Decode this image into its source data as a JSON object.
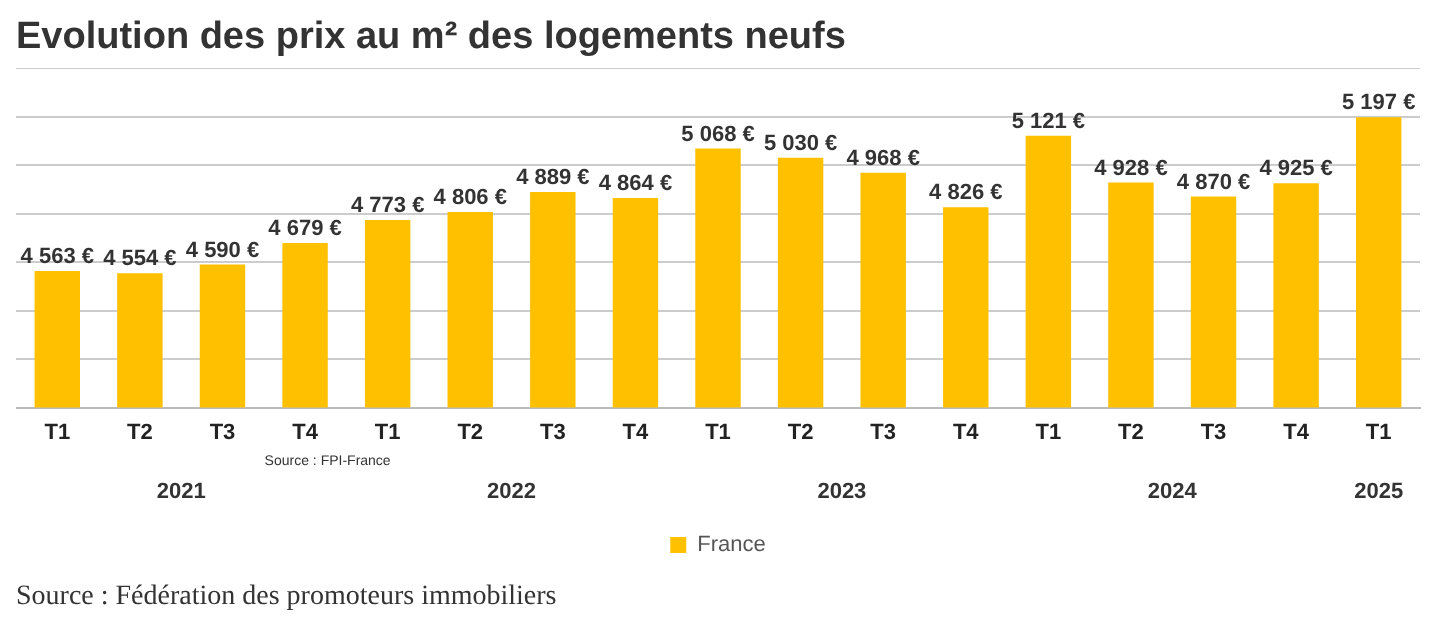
{
  "chart_data": {
    "type": "bar",
    "title": "Evolution des prix au m² des logements neufs",
    "categories": [
      "T1",
      "T2",
      "T3",
      "T4",
      "T1",
      "T2",
      "T3",
      "T4",
      "T1",
      "T2",
      "T3",
      "T4",
      "T1",
      "T2",
      "T3",
      "T4",
      "T1"
    ],
    "series": [
      {
        "name": "France",
        "color": "#ffc000",
        "values": [
          4563,
          4554,
          4590,
          4679,
          4773,
          4806,
          4889,
          4864,
          5068,
          5030,
          4968,
          4826,
          5121,
          4928,
          4870,
          4925,
          5197
        ],
        "value_labels": [
          "4 563 €",
          "4 554 €",
          "4 590 €",
          "4 679 €",
          "4 773 €",
          "4 806 €",
          "4 889 €",
          "4 864 €",
          "5 068 €",
          "5 030 €",
          "4 968 €",
          "4 826 €",
          "5 121 €",
          "4 928 €",
          "4 870 €",
          "4 925 €",
          "5 197 €"
        ]
      }
    ],
    "ylim": [
      4000,
      5400
    ],
    "yticks": [
      {
        "value": 4000,
        "label": null
      },
      {
        "value": 4200,
        "label": null
      },
      {
        "value": 4400,
        "label": null
      },
      {
        "value": 4600,
        "label": null
      },
      {
        "value": 4800,
        "label": null
      },
      {
        "value": 5000,
        "label": null
      },
      {
        "value": 5200,
        "label": null
      },
      {
        "value": 5400,
        "label": null
      }
    ],
    "tick_labels": "x",
    "grid": "y",
    "legend": "bottom",
    "annotations": [
      "2021",
      "2022",
      "2023",
      "2024",
      "2025",
      "Source : FPI-France",
      "Source : Fédération des promoteurs immobiliers"
    ]
  }
}
